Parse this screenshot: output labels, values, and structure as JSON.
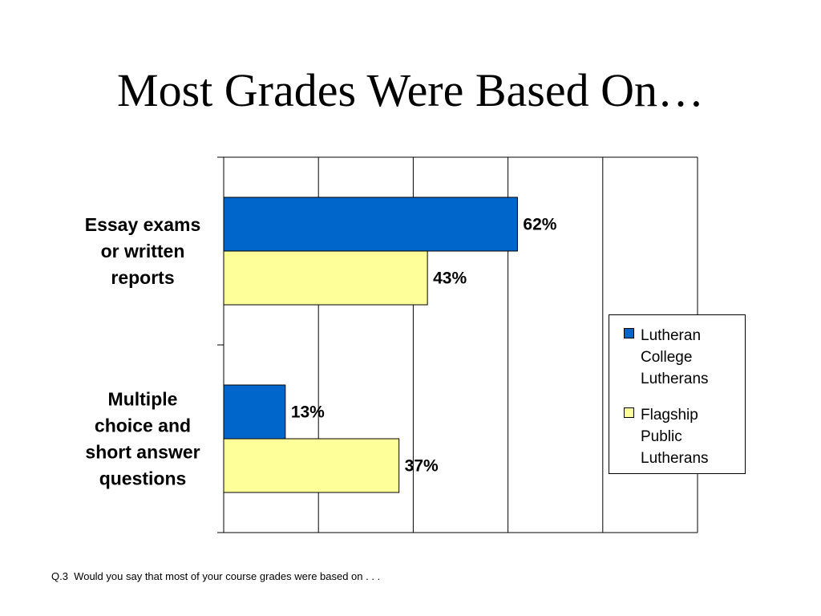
{
  "slide": {
    "title": "Most Grades Were Based On…",
    "footnote": "Q.3  Would you say that most of your course grades were based on . . ."
  },
  "colors": {
    "series1": "#0066cc",
    "series2": "#ffff99",
    "gridline": "#000000"
  },
  "chart_data": {
    "type": "bar",
    "orientation": "horizontal",
    "categories": [
      [
        "Essay exams",
        "or written",
        "reports"
      ],
      [
        "Multiple",
        "choice and",
        "short answer",
        "questions"
      ]
    ],
    "series": [
      {
        "name": "Lutheran College Lutherans",
        "values": [
          62,
          13
        ],
        "labels": [
          "62%",
          "13%"
        ],
        "color": "#0066cc"
      },
      {
        "name": "Flagship Public Lutherans",
        "values": [
          43,
          37
        ],
        "labels": [
          "43%",
          "37%"
        ],
        "color": "#ffff99"
      }
    ],
    "xlim": [
      0,
      100
    ],
    "x_tick_labels_shown": false,
    "grid": true,
    "legend": {
      "position": "right",
      "entries": [
        [
          "Lutheran",
          "College",
          "Lutherans"
        ],
        [
          "Flagship",
          "Public",
          "Lutherans"
        ]
      ]
    }
  }
}
